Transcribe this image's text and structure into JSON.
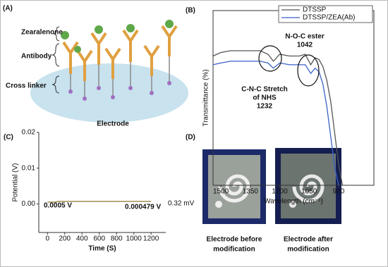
{
  "panel_a": {
    "label": "(A)",
    "labels": [
      "Zearalenone",
      "Antibody",
      "Cross linker"
    ],
    "electrode": "Electrode"
  },
  "chart_data": [
    {
      "type": "line",
      "panel_label": "(B)",
      "xlabel": "Wavelength (cm⁻¹)",
      "ylabel": "Transmittance (%)",
      "x": [
        1540,
        1500,
        1450,
        1400,
        1350,
        1300,
        1260,
        1232,
        1200,
        1150,
        1100,
        1070,
        1042,
        1020,
        1000,
        980,
        960,
        940,
        920,
        900,
        880
      ],
      "series": [
        {
          "name": "DTSSP",
          "color": "#555555",
          "values": [
            74,
            76,
            77,
            77,
            77,
            77,
            75,
            71,
            75,
            74,
            74,
            75,
            69,
            73,
            72,
            68,
            60,
            48,
            30,
            12,
            0
          ]
        },
        {
          "name": "DTSSP/ZEA(Ab)",
          "color": "#3a62c8",
          "values": [
            69,
            70,
            71,
            71,
            71,
            71,
            70,
            67,
            70,
            69,
            69,
            69,
            64,
            67,
            65,
            58,
            45,
            28,
            10,
            0,
            null
          ]
        }
      ],
      "xlim": [
        1540,
        720
      ],
      "xticks": [
        1500,
        1350,
        1200,
        1050,
        900
      ],
      "ylim": [
        0,
        100
      ],
      "legend": "upper right",
      "annotations": [
        [
          "N-O-C ester",
          "1042"
        ],
        [
          "C-N-C Stretch",
          "of NHS",
          "1232"
        ]
      ]
    },
    {
      "type": "line",
      "panel_label": "(C)",
      "xlabel": "Time (S)",
      "ylabel": "Potential (V)",
      "x": [
        0,
        100,
        120,
        1200
      ],
      "values": [
        0.0005,
        0.0005,
        0.0007,
        0.0007
      ],
      "color": "#8b7a2e",
      "xlim": [
        -100,
        1370
      ],
      "xticks": [
        0,
        200,
        400,
        600,
        800,
        1000,
        1200
      ],
      "ylim": [
        -0.008,
        0.02
      ],
      "yticks": [
        {
          "value": 0,
          "label": "0.00"
        },
        {
          "value": 0.01,
          "label": "0.01"
        },
        {
          "value": 0.02,
          "label": "0.02"
        }
      ],
      "annotations": [
        "0.0005 V",
        "0.000479 V",
        "0.32 mV"
      ]
    }
  ],
  "panel_d": {
    "label": "(D)",
    "captions": [
      [
        "Electrode before",
        "modification"
      ],
      [
        "Electrode after",
        "modification"
      ]
    ]
  }
}
